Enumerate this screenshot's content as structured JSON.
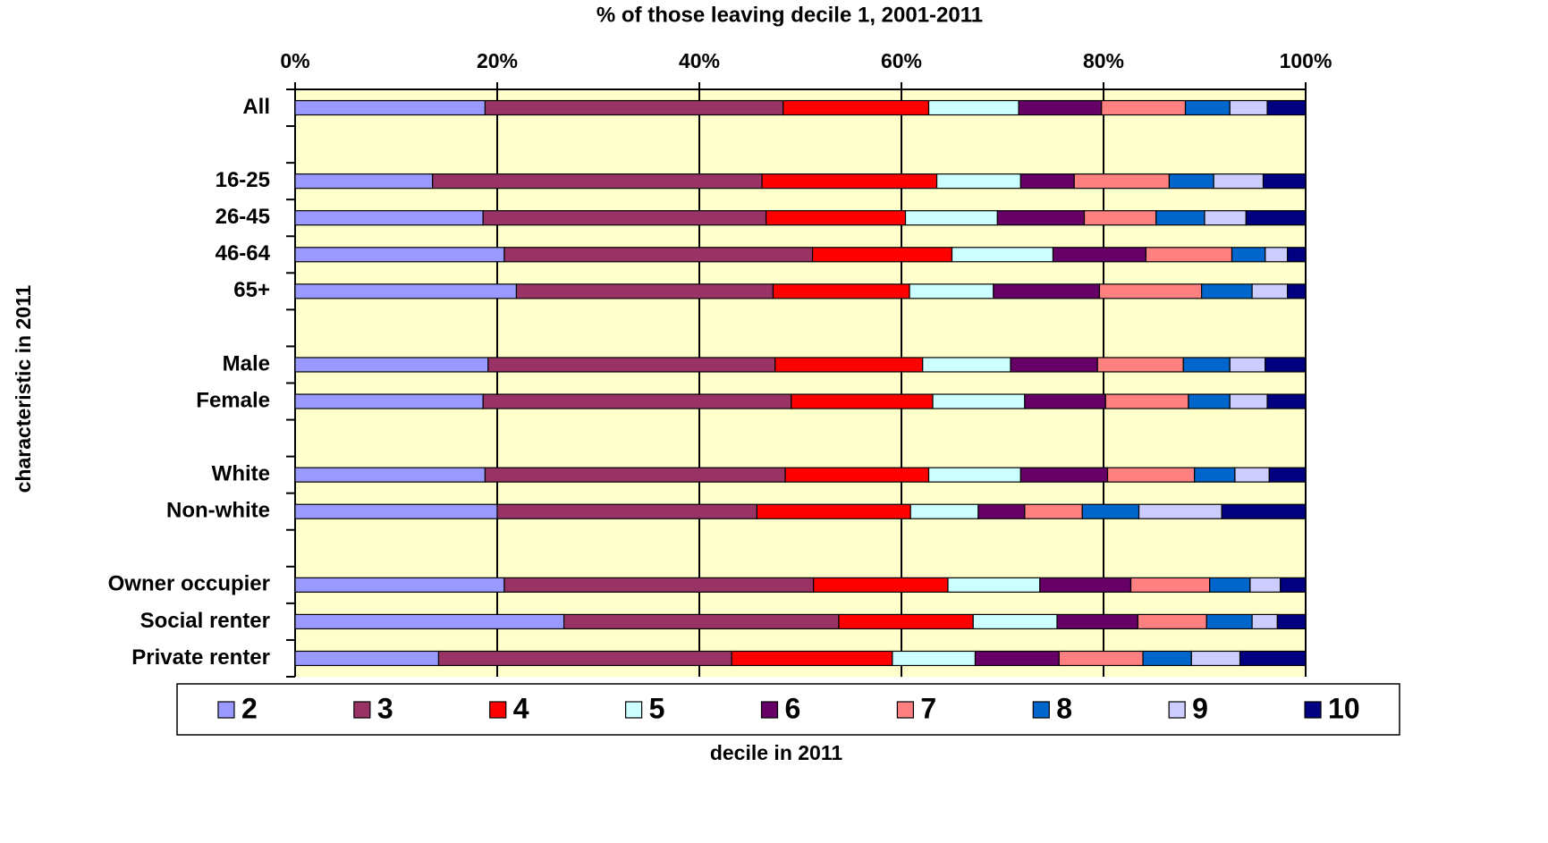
{
  "chart_data": {
    "type": "stacked-barh",
    "title": "% of those leaving decile 1, 2001-2011",
    "y_label": "characteristic in 2011",
    "legend_title": "decile in 2011",
    "legend": "bottom",
    "grid": true,
    "background": "#ffffcc",
    "categories": [
      "All",
      null,
      "16-25",
      "26-45",
      "46-64",
      "65+",
      null,
      "Male",
      "Female",
      null,
      "White",
      "Non-white",
      null,
      "Owner occupier",
      "Social renter",
      "Private renter"
    ],
    "xlim": [
      0,
      100
    ],
    "xticks": [
      {
        "value": 0,
        "label": "0%"
      },
      {
        "value": 20,
        "label": "20%"
      },
      {
        "value": 40,
        "label": "40%"
      },
      {
        "value": 60,
        "label": "60%"
      },
      {
        "value": 80,
        "label": "80%"
      },
      {
        "value": 100,
        "label": "100%"
      }
    ],
    "series": [
      {
        "name": "2",
        "color": "#9999ff",
        "values": [
          18.8,
          null,
          13.6,
          18.6,
          20.7,
          21.9,
          null,
          19.1,
          18.6,
          null,
          18.8,
          20.0,
          null,
          20.7,
          26.6,
          14.2
        ]
      },
      {
        "name": "3",
        "color": "#993366",
        "values": [
          29.5,
          null,
          32.6,
          28.0,
          30.5,
          25.4,
          null,
          28.4,
          30.5,
          null,
          29.7,
          25.7,
          null,
          30.6,
          27.2,
          29.0
        ]
      },
      {
        "name": "4",
        "color": "#ff0000",
        "values": [
          14.4,
          null,
          17.3,
          13.8,
          13.8,
          13.5,
          null,
          14.6,
          14.0,
          null,
          14.2,
          15.2,
          null,
          13.3,
          13.3,
          15.9
        ]
      },
      {
        "name": "5",
        "color": "#ccffff",
        "values": [
          8.9,
          null,
          8.3,
          9.1,
          10.0,
          8.3,
          null,
          8.7,
          9.1,
          null,
          9.1,
          6.7,
          null,
          9.1,
          8.3,
          8.2
        ]
      },
      {
        "name": "6",
        "color": "#660066",
        "values": [
          8.2,
          null,
          5.3,
          8.6,
          9.2,
          10.5,
          null,
          8.6,
          8.0,
          null,
          8.6,
          4.6,
          null,
          9.0,
          8.0,
          8.3
        ]
      },
      {
        "name": "7",
        "color": "#ff8080",
        "values": [
          8.3,
          null,
          9.4,
          7.1,
          8.5,
          10.1,
          null,
          8.5,
          8.2,
          null,
          8.6,
          5.7,
          null,
          7.8,
          6.8,
          8.3
        ]
      },
      {
        "name": "8",
        "color": "#0066cc",
        "values": [
          4.4,
          null,
          4.4,
          4.8,
          3.3,
          5.0,
          null,
          4.6,
          4.1,
          null,
          4.0,
          5.6,
          null,
          4.0,
          4.5,
          4.8
        ]
      },
      {
        "name": "9",
        "color": "#ccccff",
        "values": [
          3.7,
          null,
          4.9,
          4.1,
          2.2,
          3.5,
          null,
          3.5,
          3.7,
          null,
          3.4,
          8.2,
          null,
          3.0,
          2.5,
          4.8
        ]
      },
      {
        "name": "10",
        "color": "#000080",
        "values": [
          3.8,
          null,
          4.2,
          5.9,
          1.8,
          1.8,
          null,
          4.0,
          3.8,
          null,
          3.6,
          8.3,
          null,
          2.5,
          2.8,
          6.5
        ]
      }
    ]
  }
}
